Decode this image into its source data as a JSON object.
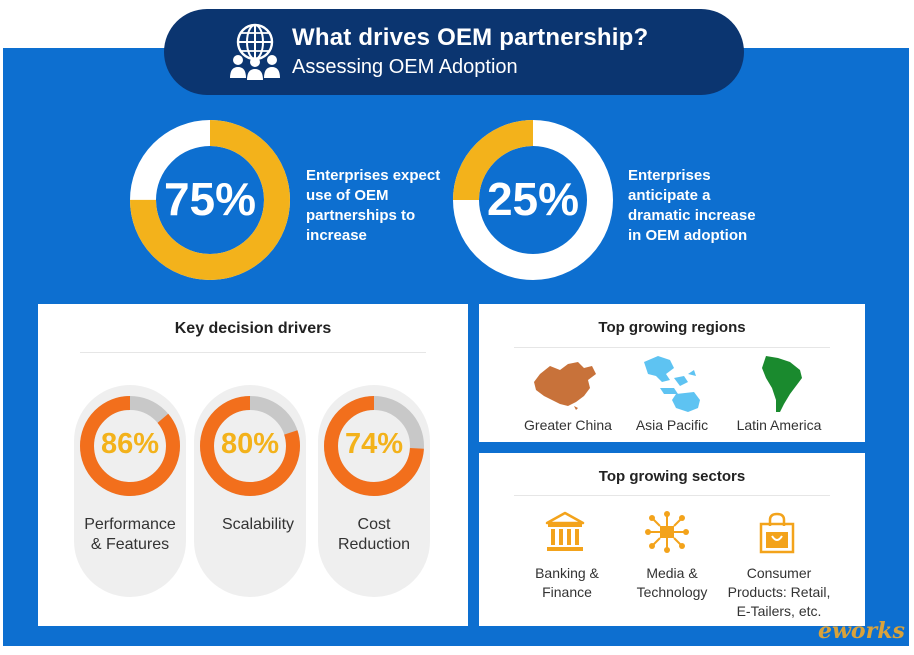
{
  "header": {
    "title": "What drives OEM partnership?",
    "subtitle": "Assessing OEM Adoption",
    "icon": "globe-people-icon"
  },
  "stats": [
    {
      "value": "75%",
      "fraction": 0.75,
      "text": [
        "Enterprises expect",
        "use of OEM",
        "partnerships to",
        "increase"
      ]
    },
    {
      "value": "25%",
      "fraction": 0.25,
      "text": [
        "Enterprises",
        "anticipate a",
        "dramatic increase",
        "in OEM adoption"
      ]
    }
  ],
  "drivers": {
    "title": "Key decision drivers",
    "items": [
      {
        "value": "86%",
        "fraction": 0.86,
        "label": [
          "Performance",
          "& Features"
        ]
      },
      {
        "value": "80%",
        "fraction": 0.8,
        "label": [
          "Scalability"
        ]
      },
      {
        "value": "74%",
        "fraction": 0.74,
        "label": [
          "Cost",
          "Reduction"
        ]
      }
    ]
  },
  "regions": {
    "title": "Top growing regions",
    "items": [
      {
        "label": "Greater China",
        "icon": "china-map-icon"
      },
      {
        "label": "Asia Pacific",
        "icon": "asia-pacific-map-icon"
      },
      {
        "label": "Latin America",
        "icon": "latin-america-map-icon"
      }
    ]
  },
  "sectors": {
    "title": "Top growing sectors",
    "items": [
      {
        "label": [
          "Banking &",
          "Finance"
        ],
        "icon": "bank-icon"
      },
      {
        "label": [
          "Media &",
          "Technology"
        ],
        "icon": "network-icon"
      },
      {
        "label": [
          "Consumer",
          "Products: Retail,",
          "E-Tailers, etc."
        ],
        "icon": "shopping-bag-icon"
      }
    ]
  },
  "watermark": "eworks",
  "colors": {
    "panel": "#0d6fd0",
    "header": "#0b3570",
    "gold": "#f3b21b",
    "orange": "#f26f1c",
    "gray": "#c8c8c8",
    "white": "#ffffff"
  }
}
